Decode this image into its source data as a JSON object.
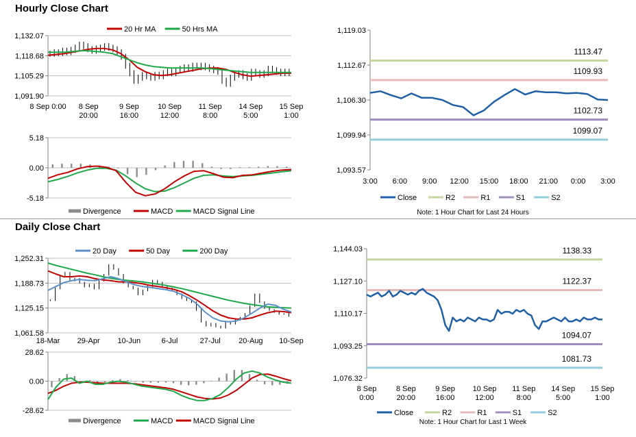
{
  "titles": {
    "hourly": "Hourly Close Chart",
    "daily": "Daily Close Chart"
  },
  "colors": {
    "close": "#1f5fa6",
    "ma20h": "#c00000",
    "ma50h": "#1fa84a",
    "d20": "#5b8fc9",
    "d50": "#c00000",
    "d200": "#1fa84a",
    "macd_red": "#c00000",
    "macd_green": "#1fa84a",
    "divergence": "#8c8c8c",
    "r2": "#c3d69b",
    "r1": "#e6b9b8",
    "s1": "#9f8cbf",
    "s2": "#93cddd",
    "grid": "#bfbfbf",
    "price": "#000000"
  },
  "chart_data": [
    {
      "id": "hourly_price",
      "type": "line",
      "y_ticks": [
        "1,132.07",
        "1,118.68",
        "1,105.29",
        "1,091.90"
      ],
      "ylim": [
        1091.9,
        1132.07
      ],
      "x_ticks": [
        [
          "8 Sep 0:00"
        ],
        [
          "8 Sep",
          "20:00"
        ],
        [
          "9 Sep",
          "16:00"
        ],
        [
          "10 Sep",
          "12:00"
        ],
        [
          "11 Sep",
          "8:00"
        ],
        [
          "14 Sep",
          "5:00"
        ],
        [
          "15 Sep",
          "1:00"
        ]
      ],
      "legend": [
        "20 Hr MA",
        "50 Hrs MA"
      ],
      "price_points": [
        1120,
        1121,
        1120.5,
        1122,
        1121,
        1122.5,
        1124,
        1126,
        1125,
        1123,
        1122,
        1123.5,
        1124,
        1125,
        1124,
        1123,
        1121,
        1118,
        1112,
        1107,
        1102,
        1104,
        1106,
        1105,
        1104,
        1106,
        1105,
        1107,
        1108,
        1107,
        1109,
        1110,
        1111,
        1110,
        1112,
        1111,
        1112,
        1111,
        1110,
        1109,
        1108,
        1102,
        1100,
        1104,
        1106,
        1107,
        1105,
        1104,
        1108,
        1107,
        1106,
        1107,
        1110,
        1109,
        1108,
        1107,
        1108,
        1107
      ],
      "series": [
        {
          "name": "20 Hr MA",
          "values": [
            1119,
            1119.5,
            1120,
            1121,
            1122,
            1123,
            1123.5,
            1123.5,
            1122.5,
            1120,
            1116,
            1111,
            1108,
            1106,
            1105.5,
            1106,
            1107,
            1108,
            1109,
            1110,
            1110.5,
            1110.5,
            1109.5,
            1107.5,
            1106,
            1105,
            1105.5,
            1106,
            1106.5,
            1107,
            1107
          ]
        },
        {
          "name": "50 Hrs MA",
          "values": [
            1121,
            1121,
            1121,
            1121.5,
            1122,
            1122,
            1121.5,
            1121,
            1120,
            1118,
            1116,
            1114,
            1112.5,
            1111.5,
            1111,
            1110.5,
            1110.5,
            1110.5,
            1110.5,
            1110.5,
            1110,
            1109.5,
            1109,
            1108.5,
            1108,
            1107.5,
            1107.5,
            1107.5,
            1107.5,
            1107.5,
            1107.5
          ]
        }
      ]
    },
    {
      "id": "hourly_macd",
      "type": "line",
      "y_ticks": [
        "5.18",
        "0.00",
        "-5.18"
      ],
      "ylim": [
        -5.18,
        5.18
      ],
      "legend": [
        "Divergence",
        "MACD",
        "MACD Signal Line"
      ],
      "series": [
        {
          "name": "MACD",
          "values": [
            -1.8,
            -1.2,
            -0.8,
            -0.2,
            0.2,
            0.3,
            0.1,
            -0.5,
            -2.5,
            -4.2,
            -4.8,
            -4.5,
            -3.6,
            -2.4,
            -1.4,
            -0.6,
            -0.5,
            -1.0,
            -1.6,
            -1.7,
            -1.3,
            -1.2,
            -0.9,
            -0.6,
            -0.4,
            -0.3
          ]
        },
        {
          "name": "MACD Signal Line",
          "values": [
            -2.4,
            -2.0,
            -1.5,
            -0.9,
            -0.4,
            -0.1,
            -0.1,
            -0.4,
            -1.4,
            -2.6,
            -3.6,
            -4.1,
            -4.0,
            -3.4,
            -2.6,
            -1.8,
            -1.3,
            -1.2,
            -1.4,
            -1.5,
            -1.4,
            -1.3,
            -1.1,
            -0.9,
            -0.7,
            -0.5
          ]
        }
      ],
      "divergence": [
        0.6,
        0.7,
        0.7,
        0.7,
        0.6,
        0.4,
        0.2,
        -0.1,
        -1.1,
        -1.6,
        -1.2,
        -0.4,
        0.4,
        1.0,
        1.2,
        1.2,
        0.8,
        0.2,
        -0.2,
        -0.2,
        0.1,
        0.1,
        0.2,
        0.3,
        0.3,
        0.2
      ]
    },
    {
      "id": "hourly_levels",
      "type": "line",
      "y_ticks": [
        "1,119.03",
        "1,112.67",
        "1,106.30",
        "1,099.94",
        "1,093.57"
      ],
      "ylim": [
        1093.57,
        1119.03
      ],
      "x_ticks": [
        "3:00",
        "6:00",
        "9:00",
        "12:00",
        "15:00",
        "18:00",
        "21:00",
        "0:00",
        "3:00"
      ],
      "levels": [
        {
          "name": "R2",
          "value": 1113.47,
          "label": "1113.47"
        },
        {
          "name": "R1",
          "value": 1109.93,
          "label": "1109.93"
        },
        {
          "name": "S1",
          "value": 1102.73,
          "label": "1102.73"
        },
        {
          "name": "S2",
          "value": 1099.07,
          "label": "1099.07"
        }
      ],
      "series": [
        {
          "name": "Close",
          "values": [
            1107.6,
            1107.9,
            1107.2,
            1106.6,
            1107.5,
            1106.7,
            1106.7,
            1106.3,
            1105.4,
            1105.0,
            1103.5,
            1104.4,
            1106.0,
            1107.2,
            1108.3,
            1107.3,
            1107.9,
            1107.7,
            1107.7,
            1107.5,
            1107.6,
            1107.4,
            1106.4,
            1106.3
          ]
        }
      ],
      "legend": [
        "Close",
        "R2",
        "R1",
        "S1",
        "S2"
      ],
      "note": "Note: 1 Hour Chart for Last 24 Hours"
    },
    {
      "id": "daily_price",
      "type": "line",
      "y_ticks": [
        "1,252.31",
        "1,188.73",
        "1,125.15",
        "1,061.58"
      ],
      "ylim": [
        1061.58,
        1252.31
      ],
      "x_ticks": [
        "18-Mar",
        "29-Apr",
        "10-Jun",
        "6-Jul",
        "27-Jul",
        "20-Aug",
        "10-Sep"
      ],
      "legend": [
        "20 Day",
        "50 Day",
        "200 Day"
      ],
      "price_points": [
        1145,
        1175,
        1205,
        1215,
        1195,
        1200,
        1190,
        1180,
        1185,
        1175,
        1195,
        1210,
        1235,
        1225,
        1210,
        1190,
        1180,
        1175,
        1160,
        1170,
        1180,
        1195,
        1190,
        1180,
        1175,
        1170,
        1160,
        1150,
        1145,
        1140,
        1120,
        1090,
        1080,
        1085,
        1078,
        1075,
        1090,
        1085,
        1095,
        1100,
        1110,
        1130,
        1160,
        1140,
        1125,
        1120,
        1115,
        1110,
        1110,
        1105
      ],
      "series": [
        {
          "name": "20 Day",
          "values": [
            1170,
            1180,
            1190,
            1195,
            1198,
            1196,
            1195,
            1200,
            1205,
            1200,
            1192,
            1185,
            1180,
            1178,
            1175,
            1172,
            1168,
            1160,
            1150,
            1135,
            1115,
            1100,
            1092,
            1090,
            1092,
            1100,
            1112,
            1125,
            1135,
            1132,
            1122,
            1115
          ]
        },
        {
          "name": "50 Day",
          "values": [
            1220,
            1212,
            1205,
            1205,
            1207,
            1205,
            1200,
            1197,
            1195,
            1192,
            1192,
            1190,
            1187,
            1183,
            1180,
            1177,
            1173,
            1167,
            1157,
            1145,
            1132,
            1118,
            1107,
            1100,
            1097,
            1097,
            1100,
            1107,
            1113,
            1117,
            1116,
            1113
          ]
        },
        {
          "name": "200 Day",
          "values": [
            1240,
            1234,
            1229,
            1224,
            1219,
            1214,
            1210,
            1205,
            1201,
            1198,
            1196,
            1194,
            1192,
            1189,
            1186,
            1183,
            1179,
            1175,
            1170,
            1165,
            1160,
            1155,
            1150,
            1145,
            1141,
            1137,
            1134,
            1131,
            1128,
            1127,
            1126,
            1125
          ]
        }
      ]
    },
    {
      "id": "daily_macd",
      "type": "line",
      "y_ticks": [
        "28.62",
        "0.00",
        "-28.62"
      ],
      "ylim": [
        -28.62,
        28.62
      ],
      "legend": [
        "Divergence",
        "MACD",
        "MACD Signal Line"
      ],
      "series": [
        {
          "name": "MACD",
          "values": [
            -18,
            -6,
            2,
            3,
            -2,
            0,
            -3,
            -3,
            -1,
            0,
            -1,
            -3,
            -5,
            -6,
            -7,
            -8,
            -10,
            -14,
            -17,
            -19,
            -19,
            -17,
            -13,
            -6,
            2,
            8,
            10,
            8,
            4,
            1,
            -1,
            -2
          ]
        },
        {
          "name": "MACD Signal Line",
          "values": [
            -12,
            -9,
            -5,
            -2,
            -1,
            -1,
            -1.5,
            -2,
            -2,
            -2,
            -2,
            -2.5,
            -3.5,
            -4.5,
            -5.5,
            -6.5,
            -8,
            -10.5,
            -13,
            -15.5,
            -17,
            -17.5,
            -16.5,
            -13.5,
            -9,
            -3,
            3,
            6.5,
            7,
            5,
            2.5,
            0.5
          ]
        }
      ],
      "divergence": [
        -6,
        3,
        7,
        5,
        -1,
        1,
        -1.5,
        -1,
        1,
        2,
        1,
        -0.5,
        -1.5,
        -1.5,
        -1.5,
        -1.5,
        -2,
        -3.5,
        -4,
        -3.5,
        -2,
        0.5,
        3.5,
        7.5,
        11,
        11,
        7,
        1.5,
        -3,
        -4,
        -3.5,
        -2.5
      ]
    },
    {
      "id": "daily_levels",
      "type": "line",
      "y_ticks": [
        "1,144.03",
        "1,127.10",
        "1,110.17",
        "1,093.25",
        "1,076.32"
      ],
      "ylim": [
        1076.32,
        1144.03
      ],
      "x_ticks": [
        [
          "8 Sep",
          "0:00"
        ],
        [
          "8 Sep",
          "20:00"
        ],
        [
          "9 Sep",
          "16:00"
        ],
        [
          "10 Sep",
          "12:00"
        ],
        [
          "11 Sep",
          "8:00"
        ],
        [
          "14 Sep",
          "5:00"
        ],
        [
          "15 Sep",
          "1:00"
        ]
      ],
      "levels": [
        {
          "name": "R2",
          "value": 1138.33,
          "label": "1138.33"
        },
        {
          "name": "R1",
          "value": 1122.37,
          "label": "1122.37"
        },
        {
          "name": "S1",
          "value": 1094.07,
          "label": "1094.07"
        },
        {
          "name": "S2",
          "value": 1081.73,
          "label": "1081.73"
        }
      ],
      "series": [
        {
          "name": "Close",
          "values": [
            1120,
            1119,
            1120,
            1121,
            1119,
            1120,
            1122,
            1119,
            1120,
            1122,
            1121,
            1120,
            1121,
            1120,
            1122,
            1123,
            1121,
            1120,
            1119,
            1117,
            1112,
            1104,
            1101,
            1108,
            1106,
            1107,
            1106,
            1108,
            1107,
            1106,
            1108,
            1107,
            1107,
            1106,
            1107,
            1112,
            1110,
            1111,
            1111,
            1110,
            1112,
            1111,
            1112,
            1110,
            1109,
            1104,
            1102,
            1106,
            1106,
            1107,
            1108,
            1107,
            1106,
            1108,
            1106,
            1106,
            1107,
            1106,
            1108,
            1107,
            1107,
            1108,
            1107,
            1107
          ]
        }
      ],
      "legend": [
        "Close",
        "R2",
        "R1",
        "S1",
        "S2"
      ],
      "note": "Note: 1 Hour Chart for Last 1 Week"
    }
  ]
}
